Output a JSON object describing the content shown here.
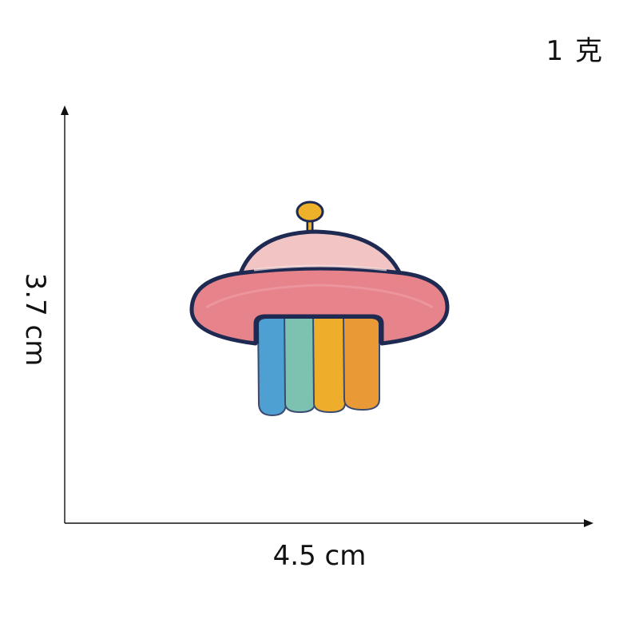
{
  "weight_label": "1 克",
  "dimensions": {
    "height_label": "3.7 cm",
    "width_label": "4.5 cm"
  },
  "patch": {
    "description_icon": "ufo-embroidered-patch",
    "colors": {
      "outline": "#1f2a52",
      "dome": "#f2c4c4",
      "saucer": "#e7838a",
      "antenna": "#eeb22a",
      "beam_blue": "#4fa0d2",
      "beam_teal": "#7dc1b0",
      "beam_yellow": "#eeae2c",
      "beam_orange": "#e99a37"
    }
  }
}
